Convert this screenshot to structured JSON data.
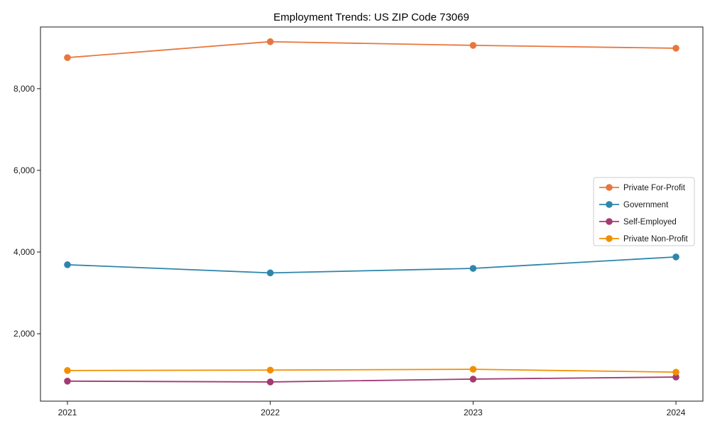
{
  "chart_data": {
    "type": "line",
    "title": "Employment Trends: US ZIP Code 73069",
    "xlabel": "",
    "ylabel": "",
    "x": [
      "2021",
      "2022",
      "2023",
      "2024"
    ],
    "series": [
      {
        "name": "Private For-Profit",
        "color": "#e8773e",
        "values": [
          8760,
          9150,
          9060,
          8990
        ]
      },
      {
        "name": "Government",
        "color": "#2e86ab",
        "values": [
          3690,
          3490,
          3600,
          3880
        ]
      },
      {
        "name": "Self-Employed",
        "color": "#a23b72",
        "values": [
          840,
          820,
          890,
          940
        ]
      },
      {
        "name": "Private Non-Profit",
        "color": "#f18f01",
        "values": [
          1100,
          1110,
          1130,
          1060
        ]
      }
    ],
    "yticks": [
      2000,
      4000,
      6000,
      8000
    ],
    "ytick_labels": [
      "2,000",
      "4,000",
      "6,000",
      "8,000"
    ],
    "ylim": [
      350,
      9510
    ],
    "grid": false,
    "legend_position": "center right",
    "marker": "circle",
    "axis_color": "#1a1a1a",
    "legend_border_color": "#cccccc",
    "legend_background": "#ffffff"
  }
}
